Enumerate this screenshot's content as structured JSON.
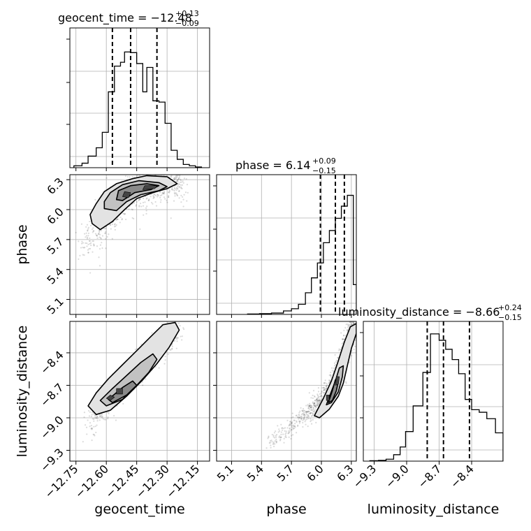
{
  "chart_data": {
    "type": "corner",
    "parameters": [
      "geocent_time",
      "phase",
      "luminosity_distance"
    ],
    "axes": {
      "geocent_time": {
        "range": [
          -12.78,
          -12.09
        ],
        "ticks": [
          -12.75,
          -12.6,
          -12.45,
          -12.3,
          -12.15
        ],
        "tick_labels": [
          "−12.75",
          "−12.60",
          "−12.45",
          "−12.30",
          "−12.15"
        ]
      },
      "phase": {
        "range": [
          4.95,
          6.35
        ],
        "ticks": [
          5.1,
          5.4,
          5.7,
          6.0,
          6.3
        ],
        "tick_labels": [
          "5.1",
          "5.4",
          "5.7",
          "6.0",
          "6.3"
        ]
      },
      "luminosity_distance": {
        "range": [
          -9.4,
          -8.11
        ],
        "ticks": [
          -9.3,
          -9.0,
          -8.7,
          -8.4
        ],
        "tick_labels": [
          "−9.3",
          "−9.0",
          "−8.7",
          "−8.4"
        ]
      }
    },
    "titles": [
      {
        "param": "geocent_time",
        "text": "geocent_time = −12.48",
        "sup": "+0.13",
        "sub": "−0.09"
      },
      {
        "param": "phase",
        "text": "phase = 6.14",
        "sup": "+0.09",
        "sub": "−0.15"
      },
      {
        "param": "luminosity_distance",
        "text": "luminosity_distance = −8.66",
        "sup": "+0.24",
        "sub": "−0.15"
      }
    ],
    "quantiles": {
      "geocent_time": [
        -12.57,
        -12.48,
        -12.35
      ],
      "phase": [
        5.99,
        6.14,
        6.23
      ],
      "luminosity_distance": [
        -8.81,
        -8.66,
        -8.42
      ]
    },
    "histograms": {
      "geocent_time": {
        "edges": [
          -12.76,
          -12.72,
          -12.69,
          -12.65,
          -12.62,
          -12.59,
          -12.56,
          -12.53,
          -12.51,
          -12.48,
          -12.45,
          -12.42,
          -12.4,
          -12.37,
          -12.34,
          -12.31,
          -12.28,
          -12.25,
          -12.22,
          -12.19,
          -12.16,
          -12.13
        ],
        "counts": [
          0.015,
          0.035,
          0.09,
          0.155,
          0.275,
          0.59,
          0.79,
          0.82,
          0.9,
          0.895,
          0.81,
          0.59,
          0.78,
          0.52,
          0.51,
          0.345,
          0.135,
          0.065,
          0.025,
          0.015,
          0.005
        ],
        "ylim": [
          0,
          1.0
        ]
      },
      "phase": {
        "edges": [
          5.26,
          5.38,
          5.5,
          5.62,
          5.7,
          5.77,
          5.84,
          5.9,
          5.96,
          6.02,
          6.08,
          6.14,
          6.2,
          6.26,
          6.32,
          6.35
        ],
        "counts": [
          0.003,
          0.006,
          0.01,
          0.026,
          0.042,
          0.075,
          0.16,
          0.27,
          0.38,
          0.53,
          0.62,
          0.71,
          0.8,
          0.88,
          0.22
        ],
        "ylim": [
          0,
          0.95
        ]
      },
      "luminosity_distance": {
        "edges": [
          -9.34,
          -9.26,
          -9.19,
          -9.12,
          -9.06,
          -9.01,
          -8.94,
          -8.85,
          -8.78,
          -8.7,
          -8.64,
          -8.58,
          -8.52,
          -8.46,
          -8.4,
          -8.33,
          -8.26,
          -8.18,
          -8.11
        ],
        "counts": [
          0.003,
          0.006,
          0.015,
          0.05,
          0.11,
          0.23,
          0.43,
          0.69,
          0.99,
          0.94,
          0.87,
          0.79,
          0.68,
          0.48,
          0.4,
          0.38,
          0.33,
          0.22
        ],
        "ylim": [
          0,
          1.0
        ]
      }
    },
    "scatter_2d": [
      {
        "x": "geocent_time",
        "y": "phase",
        "ridge": [
          [
            -12.72,
            5.64
          ],
          [
            -12.64,
            5.8
          ],
          [
            -12.58,
            5.96
          ],
          [
            -12.52,
            6.1
          ],
          [
            -12.45,
            6.19
          ],
          [
            -12.38,
            6.24
          ],
          [
            -12.3,
            6.27
          ],
          [
            -12.22,
            6.28
          ]
        ],
        "spread": [
          0.02,
          0.1
        ]
      },
      {
        "x": "geocent_time",
        "y": "luminosity_distance",
        "ridge": [
          [
            -12.7,
            -9.14
          ],
          [
            -12.63,
            -8.94
          ],
          [
            -12.57,
            -8.79
          ],
          [
            -12.51,
            -8.66
          ],
          [
            -12.45,
            -8.55
          ],
          [
            -12.38,
            -8.42
          ],
          [
            -12.32,
            -8.3
          ],
          [
            -12.25,
            -8.18
          ]
        ],
        "spread": [
          0.02,
          0.06
        ]
      },
      {
        "x": "phase",
        "y": "luminosity_distance",
        "ridge": [
          [
            5.45,
            -9.25
          ],
          [
            5.62,
            -9.14
          ],
          [
            5.78,
            -9.02
          ],
          [
            5.9,
            -8.92
          ],
          [
            6.0,
            -8.83
          ],
          [
            6.08,
            -8.72
          ],
          [
            6.16,
            -8.6
          ],
          [
            6.22,
            -8.45
          ],
          [
            6.26,
            -8.32
          ],
          [
            6.3,
            -8.2
          ],
          [
            6.32,
            -8.14
          ]
        ],
        "spread": [
          0.03,
          0.04
        ]
      }
    ],
    "contours_2d": [
      {
        "x": "geocent_time",
        "y": "phase",
        "levels": [
          {
            "fill": "#e3e3e3",
            "points": [
              [
                -12.67,
                5.86
              ],
              [
                -12.63,
                5.8
              ],
              [
                -12.57,
                5.88
              ],
              [
                -12.51,
                6.0
              ],
              [
                -12.45,
                6.11
              ],
              [
                -12.37,
                6.17
              ],
              [
                -12.3,
                6.21
              ],
              [
                -12.25,
                6.26
              ],
              [
                -12.3,
                6.33
              ],
              [
                -12.4,
                6.34
              ],
              [
                -12.47,
                6.31
              ],
              [
                -12.55,
                6.26
              ],
              [
                -12.61,
                6.18
              ],
              [
                -12.65,
                6.06
              ],
              [
                -12.68,
                5.95
              ]
            ]
          },
          {
            "fill": "#c2c2c2",
            "points": [
              [
                -12.61,
                6.01
              ],
              [
                -12.55,
                5.99
              ],
              [
                -12.5,
                6.08
              ],
              [
                -12.43,
                6.15
              ],
              [
                -12.34,
                6.19
              ],
              [
                -12.3,
                6.23
              ],
              [
                -12.34,
                6.27
              ],
              [
                -12.44,
                6.29
              ],
              [
                -12.52,
                6.25
              ],
              [
                -12.58,
                6.17
              ],
              [
                -12.61,
                6.08
              ]
            ]
          },
          {
            "fill": "#8a8a8a",
            "points": [
              [
                -12.55,
                6.1
              ],
              [
                -12.52,
                6.09
              ],
              [
                -12.46,
                6.17
              ],
              [
                -12.38,
                6.2
              ],
              [
                -12.34,
                6.24
              ],
              [
                -12.4,
                6.26
              ],
              [
                -12.48,
                6.24
              ],
              [
                -12.54,
                6.19
              ]
            ]
          },
          {
            "fill": "#444444",
            "points": [
              [
                -12.52,
                6.13
              ],
              [
                -12.49,
                6.12
              ],
              [
                -12.48,
                6.17
              ],
              [
                -12.51,
                6.18
              ]
            ]
          },
          {
            "fill": "#444444",
            "points": [
              [
                -12.42,
                6.2
              ],
              [
                -12.36,
                6.21
              ],
              [
                -12.35,
                6.24
              ],
              [
                -12.41,
                6.24
              ]
            ]
          }
        ]
      },
      {
        "x": "geocent_time",
        "y": "luminosity_distance",
        "levels": [
          {
            "fill": "#e3e3e3",
            "points": [
              [
                -12.69,
                -8.89
              ],
              [
                -12.65,
                -8.97
              ],
              [
                -12.58,
                -8.93
              ],
              [
                -12.5,
                -8.8
              ],
              [
                -12.42,
                -8.65
              ],
              [
                -12.35,
                -8.5
              ],
              [
                -12.29,
                -8.35
              ],
              [
                -12.24,
                -8.19
              ],
              [
                -12.26,
                -8.12
              ],
              [
                -12.32,
                -8.14
              ],
              [
                -12.38,
                -8.25
              ],
              [
                -12.45,
                -8.38
              ],
              [
                -12.52,
                -8.51
              ],
              [
                -12.59,
                -8.64
              ],
              [
                -12.65,
                -8.77
              ]
            ]
          },
          {
            "fill": "#c2c2c2",
            "points": [
              [
                -12.63,
                -8.84
              ],
              [
                -12.6,
                -8.89
              ],
              [
                -12.52,
                -8.83
              ],
              [
                -12.45,
                -8.7
              ],
              [
                -12.39,
                -8.58
              ],
              [
                -12.35,
                -8.46
              ],
              [
                -12.37,
                -8.41
              ],
              [
                -12.43,
                -8.49
              ],
              [
                -12.5,
                -8.61
              ],
              [
                -12.57,
                -8.73
              ]
            ]
          },
          {
            "fill": "#8a8a8a",
            "points": [
              [
                -12.59,
                -8.83
              ],
              [
                -12.57,
                -8.86
              ],
              [
                -12.5,
                -8.79
              ],
              [
                -12.45,
                -8.7
              ],
              [
                -12.47,
                -8.66
              ],
              [
                -12.52,
                -8.72
              ]
            ]
          },
          {
            "fill": "#444444",
            "points": [
              [
                -12.6,
                -8.82
              ],
              [
                -12.58,
                -8.84
              ],
              [
                -12.56,
                -8.81
              ],
              [
                -12.58,
                -8.79
              ]
            ]
          },
          {
            "fill": "#444444",
            "points": [
              [
                -12.55,
                -8.78
              ],
              [
                -12.52,
                -8.78
              ],
              [
                -12.52,
                -8.73
              ],
              [
                -12.55,
                -8.73
              ]
            ]
          }
        ]
      },
      {
        "x": "phase",
        "y": "luminosity_distance",
        "levels": [
          {
            "fill": "#e3e3e3",
            "points": [
              [
                5.93,
                -8.98
              ],
              [
                5.98,
                -9.0
              ],
              [
                6.08,
                -8.92
              ],
              [
                6.17,
                -8.8
              ],
              [
                6.22,
                -8.68
              ],
              [
                6.26,
                -8.52
              ],
              [
                6.3,
                -8.36
              ],
              [
                6.35,
                -8.22
              ],
              [
                6.35,
                -8.13
              ],
              [
                6.29,
                -8.16
              ],
              [
                6.23,
                -8.3
              ],
              [
                6.16,
                -8.5
              ],
              [
                6.1,
                -8.66
              ],
              [
                6.02,
                -8.82
              ]
            ]
          },
          {
            "fill": "#c2c2c2",
            "points": [
              [
                6.05,
                -8.88
              ],
              [
                6.1,
                -8.86
              ],
              [
                6.17,
                -8.76
              ],
              [
                6.21,
                -8.62
              ],
              [
                6.22,
                -8.52
              ],
              [
                6.18,
                -8.54
              ],
              [
                6.14,
                -8.66
              ],
              [
                6.09,
                -8.78
              ]
            ]
          },
          {
            "fill": "#8a8a8a",
            "points": [
              [
                6.07,
                -8.86
              ],
              [
                6.11,
                -8.84
              ],
              [
                6.15,
                -8.75
              ],
              [
                6.17,
                -8.66
              ],
              [
                6.14,
                -8.65
              ],
              [
                6.11,
                -8.75
              ]
            ]
          },
          {
            "fill": "#444444",
            "points": [
              [
                6.14,
                -8.7
              ],
              [
                6.17,
                -8.69
              ],
              [
                6.18,
                -8.62
              ],
              [
                6.15,
                -8.62
              ]
            ]
          },
          {
            "fill": "#444444",
            "points": [
              [
                6.05,
                -8.84
              ],
              [
                6.08,
                -8.84
              ],
              [
                6.08,
                -8.79
              ],
              [
                6.05,
                -8.79
              ]
            ]
          }
        ]
      }
    ]
  }
}
